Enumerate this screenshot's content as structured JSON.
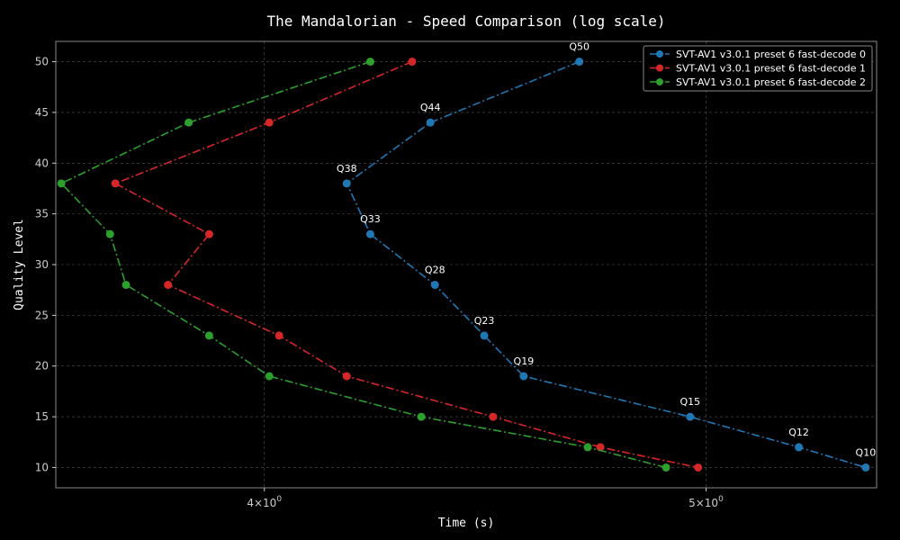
{
  "chart_data": {
    "type": "line",
    "title": "The Mandalorian - Speed Comparison (log scale)",
    "xlabel": "Time (s)",
    "ylabel": "Quality Level",
    "xscale": "log",
    "xlim": [
      3.6,
      5.45
    ],
    "ylim": [
      8,
      52
    ],
    "x_ticks": [
      {
        "value": 4,
        "base": "4×10",
        "exp": "0"
      },
      {
        "value": 5,
        "base": "5×10",
        "exp": "0"
      }
    ],
    "y_ticks": [
      10,
      15,
      20,
      25,
      30,
      35,
      40,
      45,
      50
    ],
    "grid": true,
    "legend_position": "top-right",
    "series": [
      {
        "name": "SVT-AV1 v3.0.1 preset 6 fast-decode 0",
        "color": "#1f77b4",
        "points": [
          {
            "x": 4.69,
            "y": 50
          },
          {
            "x": 4.35,
            "y": 44
          },
          {
            "x": 4.17,
            "y": 38
          },
          {
            "x": 4.22,
            "y": 33
          },
          {
            "x": 4.36,
            "y": 28
          },
          {
            "x": 4.47,
            "y": 23
          },
          {
            "x": 4.56,
            "y": 19
          },
          {
            "x": 4.96,
            "y": 15
          },
          {
            "x": 5.24,
            "y": 12
          },
          {
            "x": 5.42,
            "y": 10
          }
        ],
        "point_labels": [
          "Q50",
          "Q44",
          "Q38",
          "Q33",
          "Q28",
          "Q23",
          "Q19",
          "Q15",
          "Q12",
          "Q10"
        ]
      },
      {
        "name": "SVT-AV1 v3.0.1 preset 6 fast-decode 1",
        "color": "#d62728",
        "points": [
          {
            "x": 4.31,
            "y": 50
          },
          {
            "x": 4.01,
            "y": 44
          },
          {
            "x": 3.71,
            "y": 38
          },
          {
            "x": 3.89,
            "y": 33
          },
          {
            "x": 3.81,
            "y": 28
          },
          {
            "x": 4.03,
            "y": 23
          },
          {
            "x": 4.17,
            "y": 19
          },
          {
            "x": 4.49,
            "y": 15
          },
          {
            "x": 4.74,
            "y": 12
          },
          {
            "x": 4.98,
            "y": 10
          }
        ]
      },
      {
        "name": "SVT-AV1 v3.0.1 preset 6 fast-decode 2",
        "color": "#2ca02c",
        "points": [
          {
            "x": 4.22,
            "y": 50
          },
          {
            "x": 3.85,
            "y": 44
          },
          {
            "x": 3.61,
            "y": 38
          },
          {
            "x": 3.7,
            "y": 33
          },
          {
            "x": 3.73,
            "y": 28
          },
          {
            "x": 3.89,
            "y": 23
          },
          {
            "x": 4.01,
            "y": 19
          },
          {
            "x": 4.33,
            "y": 15
          },
          {
            "x": 4.71,
            "y": 12
          },
          {
            "x": 4.9,
            "y": 10
          }
        ]
      }
    ]
  }
}
